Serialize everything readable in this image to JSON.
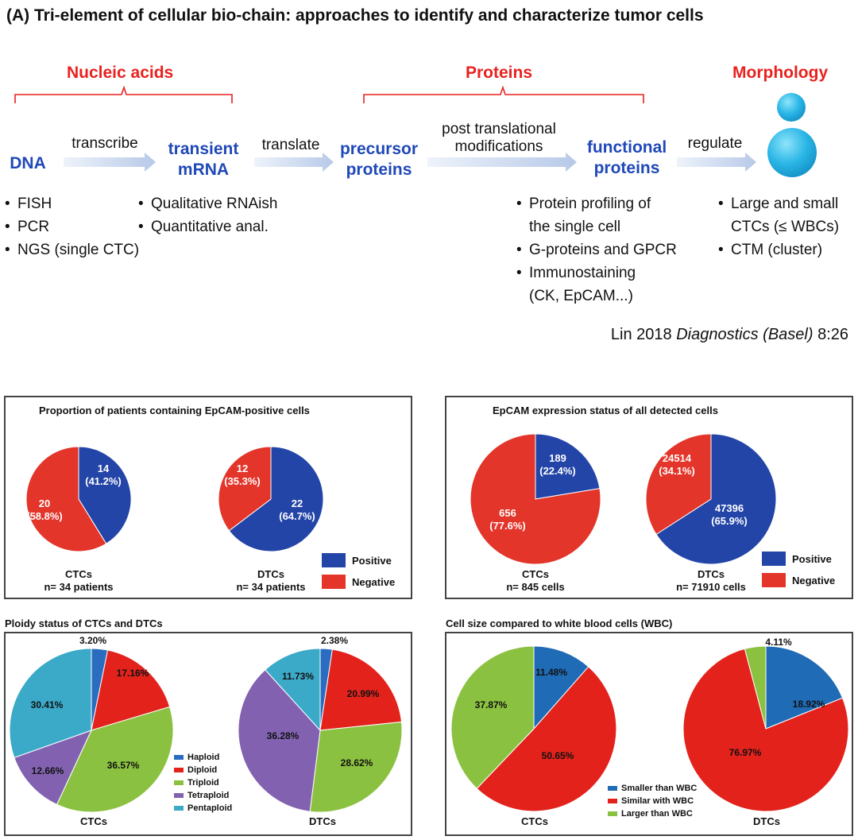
{
  "title": "(A) Tri-element of cellular bio-chain: approaches to identify and characterize tumor cells",
  "categories": {
    "nucleic": "Nucleic acids",
    "proteins": "Proteins",
    "morphology": "Morphology"
  },
  "nodes": {
    "dna": "DNA",
    "mrna_1": "transient",
    "mrna_2": "mRNA",
    "precursor_1": "precursor",
    "precursor_2": "proteins",
    "functional_1": "functional",
    "functional_2": "proteins"
  },
  "arrows": {
    "transcribe": "transcribe",
    "translate": "translate",
    "ptm_1": "post translational",
    "ptm_2": "modifications",
    "regulate": "regulate"
  },
  "lists": {
    "dna": [
      "FISH",
      "PCR",
      "NGS (single CTC)"
    ],
    "mrna": [
      "Qualitative RNAish",
      "Quantitative anal."
    ],
    "functional_1a": "Protein profiling of",
    "functional_1b": "the single cell",
    "functional_2": "G-proteins and GPCR",
    "functional_3a": "Immunostaining",
    "functional_3b": "(CK, EpCAM...)",
    "morph_1a": "Large and small",
    "morph_1b": "CTCs (≤ WBCs)",
    "morph_2": "CTM (cluster)"
  },
  "citation": {
    "prefix": "Lin 2018 ",
    "journal": "Diagnostics (Basel)",
    "suffix": " 8:26"
  },
  "colors": {
    "positive": "#2345a8",
    "negative": "#e3352a",
    "haploid": "#2a6cc0",
    "diploid": "#e3221c",
    "triploid": "#8bc140",
    "tetraploid": "#8262b0",
    "pentaploid": "#3ba9c8",
    "cell_smaller": "#1f6bb5",
    "cell_similar": "#e3221c",
    "cell_larger": "#8bc140",
    "category": "#e8221f",
    "node": "#1f48b8"
  },
  "chart_data": [
    {
      "id": "epcam_patients",
      "type": "pie",
      "title": "Proportion of patients containing EpCAM-positive cells",
      "legend": [
        "Positive",
        "Negative"
      ],
      "pies": [
        {
          "label": "CTCs",
          "sublabel": "n= 34 patients",
          "slices": [
            {
              "name": "Positive",
              "count": "14",
              "pct": "(41.2%)",
              "value": 41.2
            },
            {
              "name": "Negative",
              "count": "20",
              "pct": "(58.8%)",
              "value": 58.8
            }
          ]
        },
        {
          "label": "DTCs",
          "sublabel": "n= 34 patients",
          "slices": [
            {
              "name": "Positive",
              "count": "22",
              "pct": "(64.7%)",
              "value": 64.7
            },
            {
              "name": "Negative",
              "count": "12",
              "pct": "(35.3%)",
              "value": 35.3
            }
          ]
        }
      ]
    },
    {
      "id": "epcam_cells",
      "type": "pie",
      "title": "EpCAM expression status of all detected cells",
      "legend": [
        "Positive",
        "Negative"
      ],
      "pies": [
        {
          "label": "CTCs",
          "sublabel": "n= 845 cells",
          "slices": [
            {
              "name": "Positive",
              "count": "189",
              "pct": "(22.4%)",
              "value": 22.4
            },
            {
              "name": "Negative",
              "count": "656",
              "pct": "(77.6%)",
              "value": 77.6
            }
          ]
        },
        {
          "label": "DTCs",
          "sublabel": "n= 71910 cells",
          "slices": [
            {
              "name": "Positive",
              "count": "47396",
              "pct": "(65.9%)",
              "value": 65.9
            },
            {
              "name": "Negative",
              "count": "24514",
              "pct": "(34.1%)",
              "value": 34.1
            }
          ]
        }
      ]
    },
    {
      "id": "ploidy",
      "type": "pie",
      "title": "Ploidy status of CTCs and DTCs",
      "legend": [
        "Haploid",
        "Diploid",
        "Triploid",
        "Tetraploid",
        "Pentaploid"
      ],
      "pies": [
        {
          "label": "CTCs",
          "slices": [
            {
              "name": "Haploid",
              "pct": "3.20%",
              "value": 3.2
            },
            {
              "name": "Diploid",
              "pct": "17.16%",
              "value": 17.16
            },
            {
              "name": "Triploid",
              "pct": "36.57%",
              "value": 36.57
            },
            {
              "name": "Tetraploid",
              "pct": "12.66%",
              "value": 12.66
            },
            {
              "name": "Pentaploid",
              "pct": "30.41%",
              "value": 30.41
            }
          ]
        },
        {
          "label": "DTCs",
          "slices": [
            {
              "name": "Haploid",
              "pct": "2.38%",
              "value": 2.38
            },
            {
              "name": "Diploid",
              "pct": "20.99%",
              "value": 20.99
            },
            {
              "name": "Triploid",
              "pct": "28.62%",
              "value": 28.62
            },
            {
              "name": "Tetraploid",
              "pct": "36.28%",
              "value": 36.28
            },
            {
              "name": "Pentaploid",
              "pct": "11.73%",
              "value": 11.73
            }
          ]
        }
      ]
    },
    {
      "id": "cell_size",
      "type": "pie",
      "title": "Cell size compared to white blood cells (WBC)",
      "legend": [
        "Smaller than WBC",
        "Similar with WBC",
        "Larger than WBC"
      ],
      "pies": [
        {
          "label": "CTCs",
          "slices": [
            {
              "name": "Smaller than WBC",
              "pct": "11.48%",
              "value": 11.48
            },
            {
              "name": "Similar with WBC",
              "pct": "50.65%",
              "value": 50.65
            },
            {
              "name": "Larger than WBC",
              "pct": "37.87%",
              "value": 37.87
            }
          ]
        },
        {
          "label": "DTCs",
          "slices": [
            {
              "name": "Smaller than WBC",
              "pct": "18.92%",
              "value": 18.92
            },
            {
              "name": "Similar with WBC",
              "pct": "76.97%",
              "value": 76.97
            },
            {
              "name": "Larger than WBC",
              "pct": "4.11%",
              "value": 4.11
            }
          ]
        }
      ]
    }
  ]
}
